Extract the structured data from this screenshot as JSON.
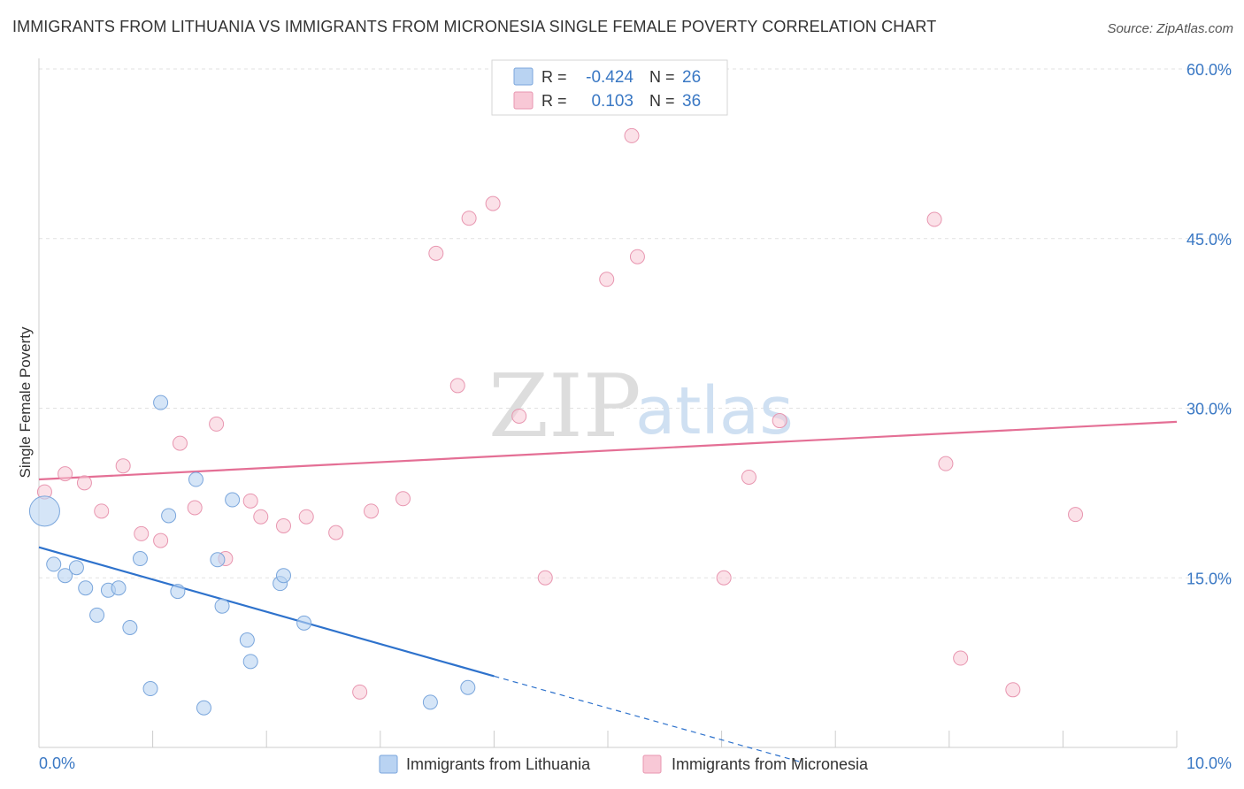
{
  "header": {
    "title": "IMMIGRANTS FROM LITHUANIA VS IMMIGRANTS FROM MICRONESIA SINGLE FEMALE POVERTY CORRELATION CHART",
    "source": "Source: ZipAtlas.com"
  },
  "watermark": {
    "zip": "ZIP",
    "atlas": "atlas"
  },
  "stats": {
    "lithuania": {
      "r_label": "R =",
      "r_value": "-0.424",
      "n_label": "N =",
      "n_value": "26"
    },
    "micronesia": {
      "r_label": "R =",
      "r_value": "0.103",
      "n_label": "N =",
      "n_value": "36"
    }
  },
  "legend": {
    "lithuania": "Immigrants from Lithuania",
    "micronesia": "Immigrants from Micronesia"
  },
  "colors": {
    "lithuania_fill": "#b9d3f2",
    "lithuania_stroke": "#7aa6dc",
    "lithuania_line": "#2e72cc",
    "micronesia_fill": "#f8c8d6",
    "micronesia_stroke": "#e896b0",
    "micronesia_line": "#e46f95",
    "axis_text": "#3a78c4",
    "grid": "#e2e2e2"
  },
  "chart_data": {
    "type": "scatter",
    "title": "IMMIGRANTS FROM LITHUANIA VS IMMIGRANTS FROM MICRONESIA SINGLE FEMALE POVERTY CORRELATION CHART",
    "xlabel": "",
    "ylabel": "Single Female Poverty",
    "xlim": [
      0,
      10
    ],
    "ylim": [
      0,
      60
    ],
    "x_tick_labels": [
      "0.0%",
      "10.0%"
    ],
    "y_ticks": [
      15,
      30,
      45,
      60
    ],
    "y_tick_labels": [
      "15.0%",
      "30.0%",
      "45.0%",
      "60.0%"
    ],
    "grid": true,
    "legend_position": "bottom-center",
    "series": [
      {
        "name": "Immigrants from Lithuania",
        "r": -0.424,
        "n": 26,
        "points": [
          {
            "x": 0.05,
            "y": 20.9,
            "big": true
          },
          {
            "x": 0.13,
            "y": 16.2
          },
          {
            "x": 0.23,
            "y": 15.2
          },
          {
            "x": 0.33,
            "y": 15.9
          },
          {
            "x": 0.41,
            "y": 14.1
          },
          {
            "x": 0.51,
            "y": 11.7
          },
          {
            "x": 0.61,
            "y": 13.9
          },
          {
            "x": 0.7,
            "y": 14.1
          },
          {
            "x": 0.8,
            "y": 10.6
          },
          {
            "x": 0.89,
            "y": 16.7
          },
          {
            "x": 0.98,
            "y": 5.2
          },
          {
            "x": 1.07,
            "y": 30.5
          },
          {
            "x": 1.22,
            "y": 13.8
          },
          {
            "x": 1.14,
            "y": 20.5
          },
          {
            "x": 1.38,
            "y": 23.7
          },
          {
            "x": 1.45,
            "y": 3.5
          },
          {
            "x": 1.57,
            "y": 16.6
          },
          {
            "x": 1.61,
            "y": 12.5
          },
          {
            "x": 1.7,
            "y": 21.9
          },
          {
            "x": 1.83,
            "y": 9.5
          },
          {
            "x": 1.86,
            "y": 7.6
          },
          {
            "x": 2.12,
            "y": 14.5
          },
          {
            "x": 2.15,
            "y": 15.2
          },
          {
            "x": 2.33,
            "y": 11.0
          },
          {
            "x": 3.44,
            "y": 4.0
          },
          {
            "x": 3.77,
            "y": 5.3
          }
        ],
        "trend": {
          "x0": 0.0,
          "y0": 17.7,
          "x1": 4.0,
          "y1": 6.3,
          "dash_x1": 6.7,
          "dash_y1": -1.3
        }
      },
      {
        "name": "Immigrants from Micronesia",
        "r": 0.103,
        "n": 36,
        "points": [
          {
            "x": 0.05,
            "y": 22.6
          },
          {
            "x": 0.23,
            "y": 24.2
          },
          {
            "x": 0.4,
            "y": 23.4
          },
          {
            "x": 0.55,
            "y": 20.9
          },
          {
            "x": 0.74,
            "y": 24.9
          },
          {
            "x": 0.9,
            "y": 18.9
          },
          {
            "x": 1.07,
            "y": 18.3
          },
          {
            "x": 1.24,
            "y": 26.9
          },
          {
            "x": 1.37,
            "y": 21.2
          },
          {
            "x": 1.56,
            "y": 28.6
          },
          {
            "x": 1.64,
            "y": 16.7
          },
          {
            "x": 1.86,
            "y": 21.8
          },
          {
            "x": 1.95,
            "y": 20.4
          },
          {
            "x": 2.15,
            "y": 19.6
          },
          {
            "x": 2.35,
            "y": 20.4
          },
          {
            "x": 2.61,
            "y": 19.0
          },
          {
            "x": 2.82,
            "y": 4.9
          },
          {
            "x": 2.92,
            "y": 20.9
          },
          {
            "x": 3.2,
            "y": 22.0
          },
          {
            "x": 3.49,
            "y": 43.7
          },
          {
            "x": 3.68,
            "y": 32.0
          },
          {
            "x": 3.78,
            "y": 46.8
          },
          {
            "x": 3.99,
            "y": 48.1
          },
          {
            "x": 4.22,
            "y": 29.3
          },
          {
            "x": 4.45,
            "y": 15.0
          },
          {
            "x": 4.99,
            "y": 41.4
          },
          {
            "x": 5.21,
            "y": 54.1
          },
          {
            "x": 5.26,
            "y": 43.4
          },
          {
            "x": 6.02,
            "y": 15.0
          },
          {
            "x": 6.24,
            "y": 23.9
          },
          {
            "x": 6.51,
            "y": 28.9
          },
          {
            "x": 7.87,
            "y": 46.7
          },
          {
            "x": 7.97,
            "y": 25.1
          },
          {
            "x": 8.1,
            "y": 7.9
          },
          {
            "x": 8.56,
            "y": 5.1
          },
          {
            "x": 9.11,
            "y": 20.6
          }
        ],
        "trend": {
          "x0": 0.0,
          "y0": 23.7,
          "x1": 10.0,
          "y1": 28.8
        }
      }
    ]
  }
}
